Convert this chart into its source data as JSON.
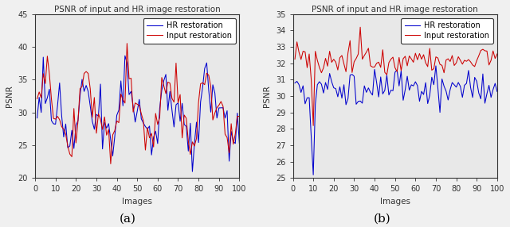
{
  "title": "PSNR of input and HR image restoration",
  "xlabel": "Images",
  "ylabel": "PSNR",
  "legend_hr": "HR restoration",
  "legend_input": "Input restoration",
  "color_hr": "#0000cd",
  "color_input": "#cd0000",
  "subplot_a_label": "(a)",
  "subplot_b_label": "(b)",
  "ylim_a": [
    20,
    45
  ],
  "ylim_b": [
    25,
    35
  ],
  "yticks_a": [
    20,
    25,
    30,
    35,
    40,
    45
  ],
  "yticks_b": [
    25,
    26,
    27,
    28,
    29,
    30,
    31,
    32,
    33,
    34,
    35
  ],
  "xticks": [
    0,
    10,
    20,
    30,
    40,
    50,
    60,
    70,
    80,
    90,
    100
  ],
  "axes_bg": "#e8e8e8",
  "fig_bg": "#f0f0f0"
}
